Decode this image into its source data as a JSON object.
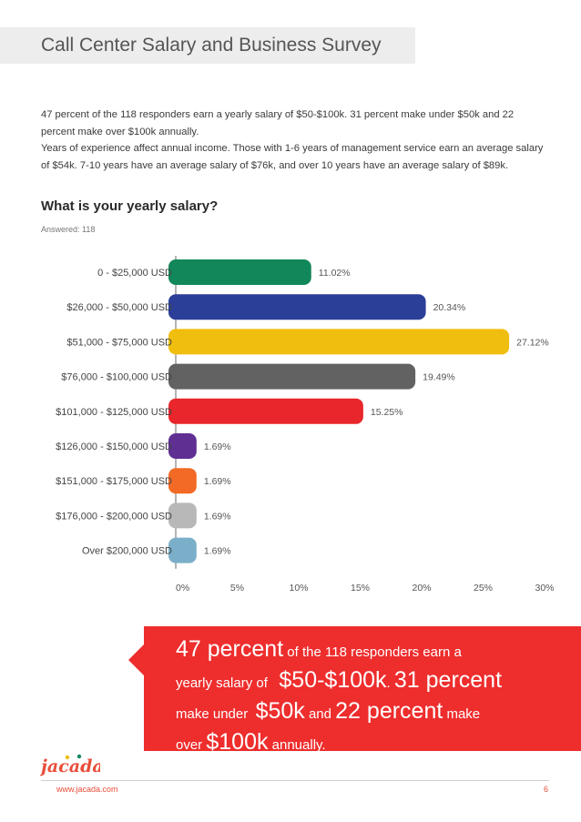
{
  "header": {
    "title": "Call Center Salary and Business Survey"
  },
  "intro": {
    "para1": "47 percent of the 118 responders earn a yearly salary of $50-$100k. 31 percent make under $50k and 22 percent make over $100k annually.",
    "para2": "Years of experience affect annual income. Those with 1-6 years of management service earn an average salary of $54k. 7-10 years have an average salary of $76k, and over 10 years have an average salary of $89k."
  },
  "question": {
    "title": "What is your yearly salary?",
    "answered": "Answered: 118"
  },
  "chart_data": {
    "type": "bar",
    "orientation": "horizontal",
    "categories": [
      "0 - $25,000 USD",
      "$26,000 - $50,000 USD",
      "$51,000 - $75,000 USD",
      "$76,000 - $100,000 USD",
      "$101,000 - $125,000 USD",
      "$126,000 - $150,000 USD",
      "$151,000 - $175,000 USD",
      "$176,000 - $200,000 USD",
      "Over $200,000 USD"
    ],
    "values": [
      11.02,
      20.34,
      27.12,
      19.49,
      15.25,
      1.69,
      1.69,
      1.69,
      1.69
    ],
    "value_labels": [
      "11.02%",
      "20.34%",
      "27.12%",
      "19.49%",
      "15.25%",
      "1.69%",
      "1.69%",
      "1.69%",
      "1.69%"
    ],
    "colors": [
      "#12875a",
      "#2b3f98",
      "#f0be0e",
      "#636263",
      "#e8262b",
      "#5f2f92",
      "#f26a25",
      "#b8b8b8",
      "#7bafc9"
    ],
    "xlim": [
      0,
      30
    ],
    "xticks": [
      0,
      5,
      10,
      15,
      20,
      25,
      30
    ],
    "xtick_labels": [
      "0%",
      "5%",
      "10%",
      "15%",
      "20%",
      "25%",
      "30%"
    ],
    "grid": false,
    "legend": "none"
  },
  "callout": {
    "s1": "47 percent",
    "s2": " of the 118 responders earn a",
    "s3": "yearly salary of ",
    "s4": "$50-$100k",
    "s5": ". ",
    "s6": "31 percent",
    "s7": "make under ",
    "s8": "$50k",
    "s9": " and ",
    "s10": "22 percent",
    "s11": " make",
    "s12": "over ",
    "s13": "$100k",
    "s14": " annually."
  },
  "footer": {
    "url": "www.jacada.com",
    "page": "6",
    "logo_text": "jacada"
  }
}
